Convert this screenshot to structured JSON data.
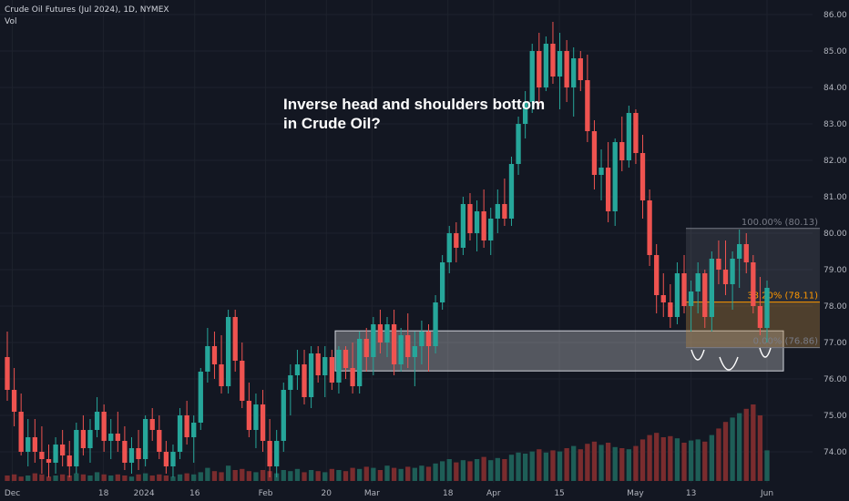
{
  "header": {
    "symbol_line": "Crude Oil Futures (Jul 2024), 1D, NYMEX",
    "volume_label": "Vol"
  },
  "annotation_text": "Inverse head and shoulders bottom\nin Crude Oil?",
  "colors": {
    "background": "#131722",
    "up": "#26a69a",
    "down": "#ef5350",
    "vol_up": "#1e5e57",
    "vol_down": "#7a2c2e",
    "axis_text": "#b2b5be",
    "grid": "#1e222d",
    "fib_line": "#ff9800",
    "fib_top": "#787b86"
  },
  "chart_data": {
    "type": "candlestick",
    "title": "Crude Oil Futures (Jul 2024), 1D, NYMEX",
    "y_axis": {
      "ticks": [
        "86.00",
        "85.00",
        "84.00",
        "83.00",
        "82.00",
        "81.00",
        "80.00",
        "79.00",
        "78.00",
        "77.00",
        "76.00",
        "75.00",
        "74.00"
      ],
      "range": [
        73.25,
        86.2
      ]
    },
    "x_axis": {
      "ticks": [
        "Dec",
        "18",
        "2024",
        "16",
        "Feb",
        "20",
        "Mar",
        "18",
        "Apr",
        "15",
        "May",
        "13",
        "Jun"
      ]
    },
    "candles": [
      [
        76.6,
        77.3,
        75.4,
        75.7
      ],
      [
        75.7,
        76.3,
        74.7,
        75.1
      ],
      [
        75.1,
        75.6,
        73.9,
        74.0
      ],
      [
        74.0,
        74.9,
        73.6,
        74.4
      ],
      [
        74.4,
        74.9,
        73.7,
        74.0
      ],
      [
        74.0,
        74.7,
        73.4,
        73.8
      ],
      [
        73.8,
        74.2,
        73.3,
        73.7
      ],
      [
        73.7,
        74.4,
        73.4,
        74.2
      ],
      [
        74.2,
        74.6,
        73.6,
        73.9
      ],
      [
        73.9,
        74.3,
        73.3,
        73.6
      ],
      [
        73.6,
        74.8,
        73.4,
        74.6
      ],
      [
        74.6,
        75.0,
        73.9,
        74.1
      ],
      [
        74.1,
        74.9,
        73.7,
        74.6
      ],
      [
        74.6,
        75.5,
        74.4,
        75.1
      ],
      [
        75.1,
        75.3,
        74.0,
        74.3
      ],
      [
        74.3,
        74.9,
        73.8,
        74.5
      ],
      [
        74.5,
        75.1,
        74.0,
        74.3
      ],
      [
        74.3,
        74.7,
        73.5,
        73.7
      ],
      [
        73.7,
        74.4,
        73.4,
        74.1
      ],
      [
        74.1,
        74.6,
        73.5,
        73.8
      ],
      [
        73.8,
        75.0,
        73.6,
        74.9
      ],
      [
        74.9,
        75.2,
        74.3,
        74.6
      ],
      [
        74.6,
        75.0,
        73.8,
        74.0
      ],
      [
        74.0,
        74.3,
        73.4,
        73.6
      ],
      [
        73.6,
        74.2,
        73.3,
        74.0
      ],
      [
        74.0,
        75.2,
        73.8,
        75.0
      ],
      [
        75.0,
        75.4,
        74.2,
        74.4
      ],
      [
        74.4,
        75.0,
        73.7,
        74.8
      ],
      [
        74.8,
        76.3,
        74.6,
        76.2
      ],
      [
        76.2,
        77.4,
        75.9,
        76.9
      ],
      [
        76.9,
        77.3,
        76.0,
        76.4
      ],
      [
        76.4,
        77.2,
        75.6,
        75.8
      ],
      [
        75.8,
        77.9,
        75.6,
        77.7
      ],
      [
        77.7,
        77.9,
        76.2,
        76.5
      ],
      [
        76.5,
        77.0,
        75.2,
        75.4
      ],
      [
        75.4,
        75.9,
        74.4,
        74.6
      ],
      [
        74.6,
        75.6,
        74.1,
        75.3
      ],
      [
        75.3,
        75.7,
        74.0,
        74.3
      ],
      [
        74.3,
        74.9,
        73.3,
        73.6
      ],
      [
        73.6,
        74.6,
        73.3,
        74.3
      ],
      [
        74.3,
        75.9,
        74.0,
        75.7
      ],
      [
        75.7,
        76.4,
        75.0,
        76.1
      ],
      [
        76.1,
        76.8,
        75.7,
        76.4
      ],
      [
        76.4,
        76.8,
        75.3,
        75.5
      ],
      [
        75.5,
        76.9,
        75.2,
        76.7
      ],
      [
        76.7,
        76.9,
        75.9,
        76.1
      ],
      [
        76.1,
        76.9,
        75.5,
        76.6
      ],
      [
        76.6,
        76.8,
        75.7,
        75.9
      ],
      [
        75.9,
        76.9,
        75.6,
        76.8
      ],
      [
        76.8,
        76.9,
        76.0,
        76.3
      ],
      [
        76.3,
        77.0,
        75.6,
        75.8
      ],
      [
        75.8,
        77.3,
        75.6,
        77.1
      ],
      [
        77.1,
        77.4,
        76.2,
        76.6
      ],
      [
        76.6,
        77.7,
        76.1,
        77.5
      ],
      [
        77.5,
        77.9,
        76.7,
        77.0
      ],
      [
        77.0,
        77.7,
        76.6,
        77.5
      ],
      [
        77.5,
        77.9,
        76.1,
        76.4
      ],
      [
        76.4,
        77.4,
        76.2,
        77.2
      ],
      [
        77.2,
        77.8,
        76.3,
        76.6
      ],
      [
        76.6,
        77.3,
        75.8,
        76.9
      ],
      [
        76.9,
        77.6,
        76.4,
        77.3
      ],
      [
        77.3,
        77.5,
        76.2,
        76.9
      ],
      [
        76.9,
        78.3,
        76.7,
        78.1
      ],
      [
        78.1,
        79.4,
        77.9,
        79.2
      ],
      [
        79.2,
        80.2,
        78.9,
        80.0
      ],
      [
        80.0,
        80.3,
        79.2,
        79.6
      ],
      [
        79.6,
        81.0,
        79.4,
        80.8
      ],
      [
        80.8,
        81.1,
        79.8,
        80.0
      ],
      [
        80.0,
        80.9,
        79.5,
        80.6
      ],
      [
        80.6,
        81.2,
        79.6,
        79.8
      ],
      [
        79.8,
        80.7,
        79.4,
        80.4
      ],
      [
        80.4,
        81.2,
        80.0,
        80.8
      ],
      [
        80.8,
        81.5,
        80.2,
        80.4
      ],
      [
        80.4,
        82.1,
        80.2,
        81.9
      ],
      [
        81.9,
        83.2,
        81.6,
        83.0
      ],
      [
        83.0,
        83.9,
        82.6,
        83.6
      ],
      [
        83.6,
        85.2,
        83.3,
        85.0
      ],
      [
        85.0,
        85.5,
        83.5,
        84.0
      ],
      [
        84.0,
        85.4,
        83.9,
        85.2
      ],
      [
        85.2,
        85.8,
        84.1,
        84.3
      ],
      [
        84.3,
        85.5,
        83.4,
        85.0
      ],
      [
        85.0,
        85.3,
        83.6,
        84.0
      ],
      [
        84.0,
        85.1,
        83.2,
        84.8
      ],
      [
        84.8,
        85.0,
        83.9,
        84.2
      ],
      [
        84.2,
        84.9,
        82.5,
        82.8
      ],
      [
        82.8,
        83.1,
        81.2,
        81.6
      ],
      [
        81.6,
        82.3,
        80.9,
        81.8
      ],
      [
        81.8,
        82.5,
        80.3,
        80.6
      ],
      [
        80.6,
        82.6,
        80.2,
        82.5
      ],
      [
        82.5,
        83.2,
        81.7,
        82.0
      ],
      [
        82.0,
        83.5,
        81.8,
        83.3
      ],
      [
        83.3,
        83.4,
        81.9,
        82.2
      ],
      [
        82.2,
        82.7,
        80.4,
        80.9
      ],
      [
        80.9,
        81.2,
        79.1,
        79.4
      ],
      [
        79.4,
        79.7,
        77.8,
        78.3
      ],
      [
        78.3,
        78.9,
        77.7,
        78.1
      ],
      [
        78.1,
        78.6,
        77.4,
        77.7
      ],
      [
        77.7,
        79.2,
        77.5,
        78.9
      ],
      [
        78.9,
        79.4,
        77.8,
        78.0
      ],
      [
        78.0,
        78.7,
        77.3,
        78.4
      ],
      [
        78.4,
        79.2,
        77.8,
        78.9
      ],
      [
        78.9,
        79.0,
        77.4,
        77.7
      ],
      [
        77.7,
        79.5,
        77.3,
        79.3
      ],
      [
        79.3,
        79.8,
        78.6,
        79.0
      ],
      [
        79.0,
        79.8,
        78.3,
        78.6
      ],
      [
        78.6,
        79.5,
        77.9,
        79.3
      ],
      [
        79.3,
        80.1,
        78.5,
        79.7
      ],
      [
        79.7,
        80.0,
        78.9,
        79.2
      ],
      [
        79.2,
        79.4,
        77.8,
        78.0
      ],
      [
        78.0,
        78.8,
        77.2,
        77.4
      ],
      [
        77.4,
        78.7,
        77.0,
        78.5
      ]
    ],
    "volume_scale": "relative (0-1)",
    "volumes": [
      0.05,
      0.06,
      0.04,
      0.05,
      0.07,
      0.06,
      0.04,
      0.05,
      0.06,
      0.05,
      0.07,
      0.06,
      0.05,
      0.08,
      0.06,
      0.05,
      0.06,
      0.05,
      0.04,
      0.06,
      0.07,
      0.05,
      0.06,
      0.05,
      0.04,
      0.06,
      0.07,
      0.06,
      0.08,
      0.12,
      0.09,
      0.08,
      0.14,
      0.1,
      0.11,
      0.09,
      0.08,
      0.1,
      0.09,
      0.07,
      0.1,
      0.09,
      0.11,
      0.08,
      0.1,
      0.09,
      0.08,
      0.11,
      0.1,
      0.09,
      0.12,
      0.11,
      0.13,
      0.12,
      0.1,
      0.14,
      0.12,
      0.11,
      0.13,
      0.12,
      0.14,
      0.13,
      0.16,
      0.18,
      0.2,
      0.17,
      0.19,
      0.18,
      0.2,
      0.22,
      0.19,
      0.21,
      0.2,
      0.24,
      0.26,
      0.25,
      0.27,
      0.29,
      0.26,
      0.28,
      0.27,
      0.3,
      0.32,
      0.29,
      0.34,
      0.36,
      0.33,
      0.35,
      0.31,
      0.3,
      0.29,
      0.32,
      0.38,
      0.42,
      0.44,
      0.4,
      0.41,
      0.39,
      0.35,
      0.37,
      0.38,
      0.36,
      0.42,
      0.48,
      0.54,
      0.58,
      0.62,
      0.66,
      0.7,
      0.6,
      0.28
    ],
    "overlays": {
      "fib_retracement": {
        "levels": [
          {
            "label": "100.00% (80.13)",
            "price": 80.13
          },
          {
            "label": "38.20% (78.11)",
            "price": 78.11
          },
          {
            "label": "0.00% (76.86)",
            "price": 76.86
          }
        ]
      },
      "neckline_zone": {
        "top": 77.32,
        "bottom": 76.22
      },
      "shoulder_marks": 3
    }
  }
}
